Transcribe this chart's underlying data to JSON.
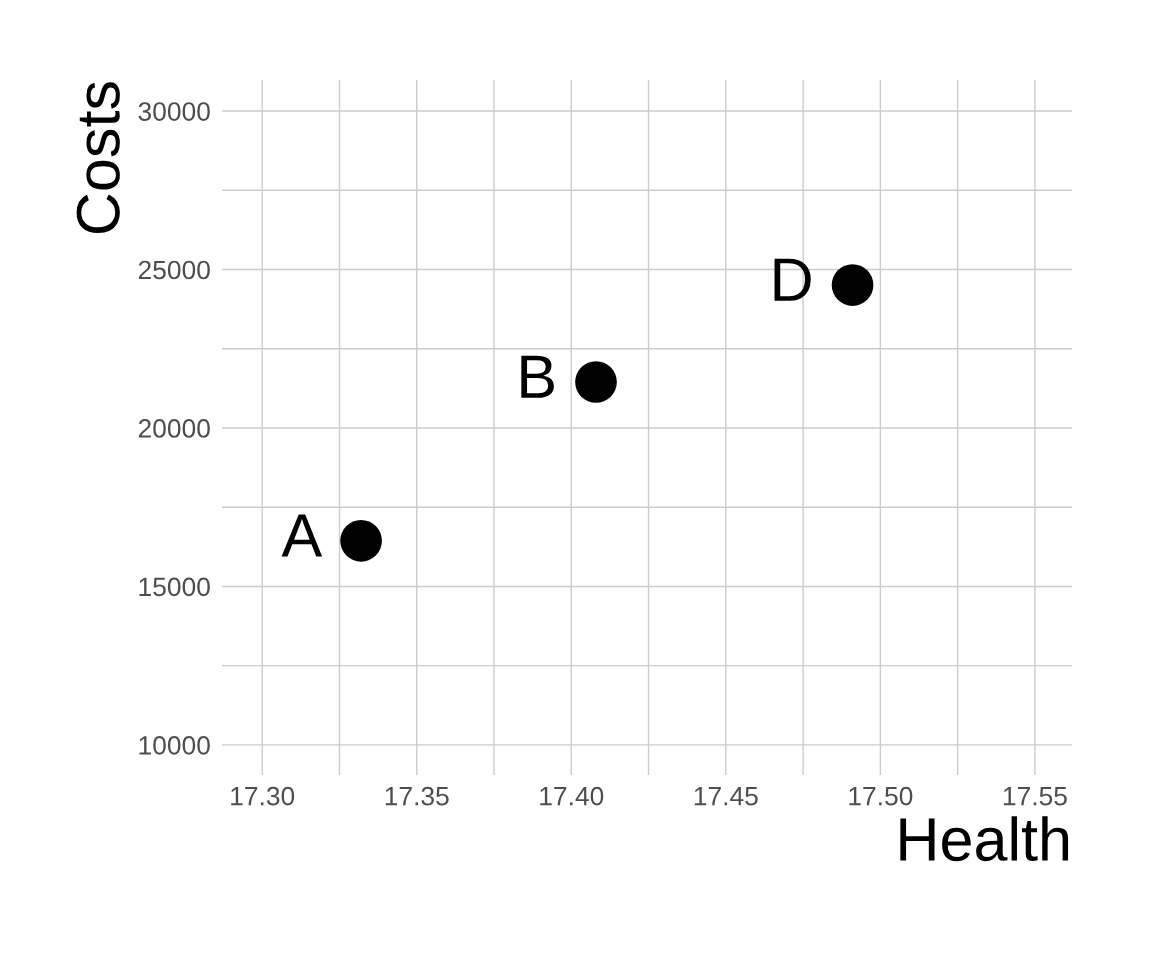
{
  "chart_data": {
    "type": "scatter",
    "xlabel": "Health",
    "ylabel": "Costs",
    "x": [
      17.332,
      17.408,
      17.491
    ],
    "series": [
      {
        "color": "#000000",
        "values": [
          16440,
          21450,
          24510
        ]
      }
    ],
    "marker": "circle",
    "grid": true,
    "annotations": [
      {
        "text": "A",
        "x": 17.332,
        "y": 16440
      },
      {
        "text": "B",
        "x": 17.408,
        "y": 21450
      },
      {
        "text": "D",
        "x": 17.491,
        "y": 24510
      }
    ],
    "xlim": [
      17.287,
      17.562
    ],
    "ylim": [
      9050,
      30980
    ],
    "xticks": [
      {
        "value": 17.3,
        "label": "17.30"
      },
      {
        "value": 17.325,
        "label": null
      },
      {
        "value": 17.35,
        "label": "17.35"
      },
      {
        "value": 17.375,
        "label": null
      },
      {
        "value": 17.4,
        "label": "17.40"
      },
      {
        "value": 17.425,
        "label": null
      },
      {
        "value": 17.45,
        "label": "17.45"
      },
      {
        "value": 17.475,
        "label": null
      },
      {
        "value": 17.5,
        "label": "17.50"
      },
      {
        "value": 17.525,
        "label": null
      },
      {
        "value": 17.55,
        "label": "17.55"
      }
    ],
    "yticks": [
      10000,
      {
        "value": 12500,
        "label": null
      },
      15000,
      {
        "value": 17500,
        "label": null
      },
      20000,
      {
        "value": 22500,
        "label": null
      },
      25000,
      {
        "value": 27500,
        "label": null
      },
      30000
    ]
  }
}
